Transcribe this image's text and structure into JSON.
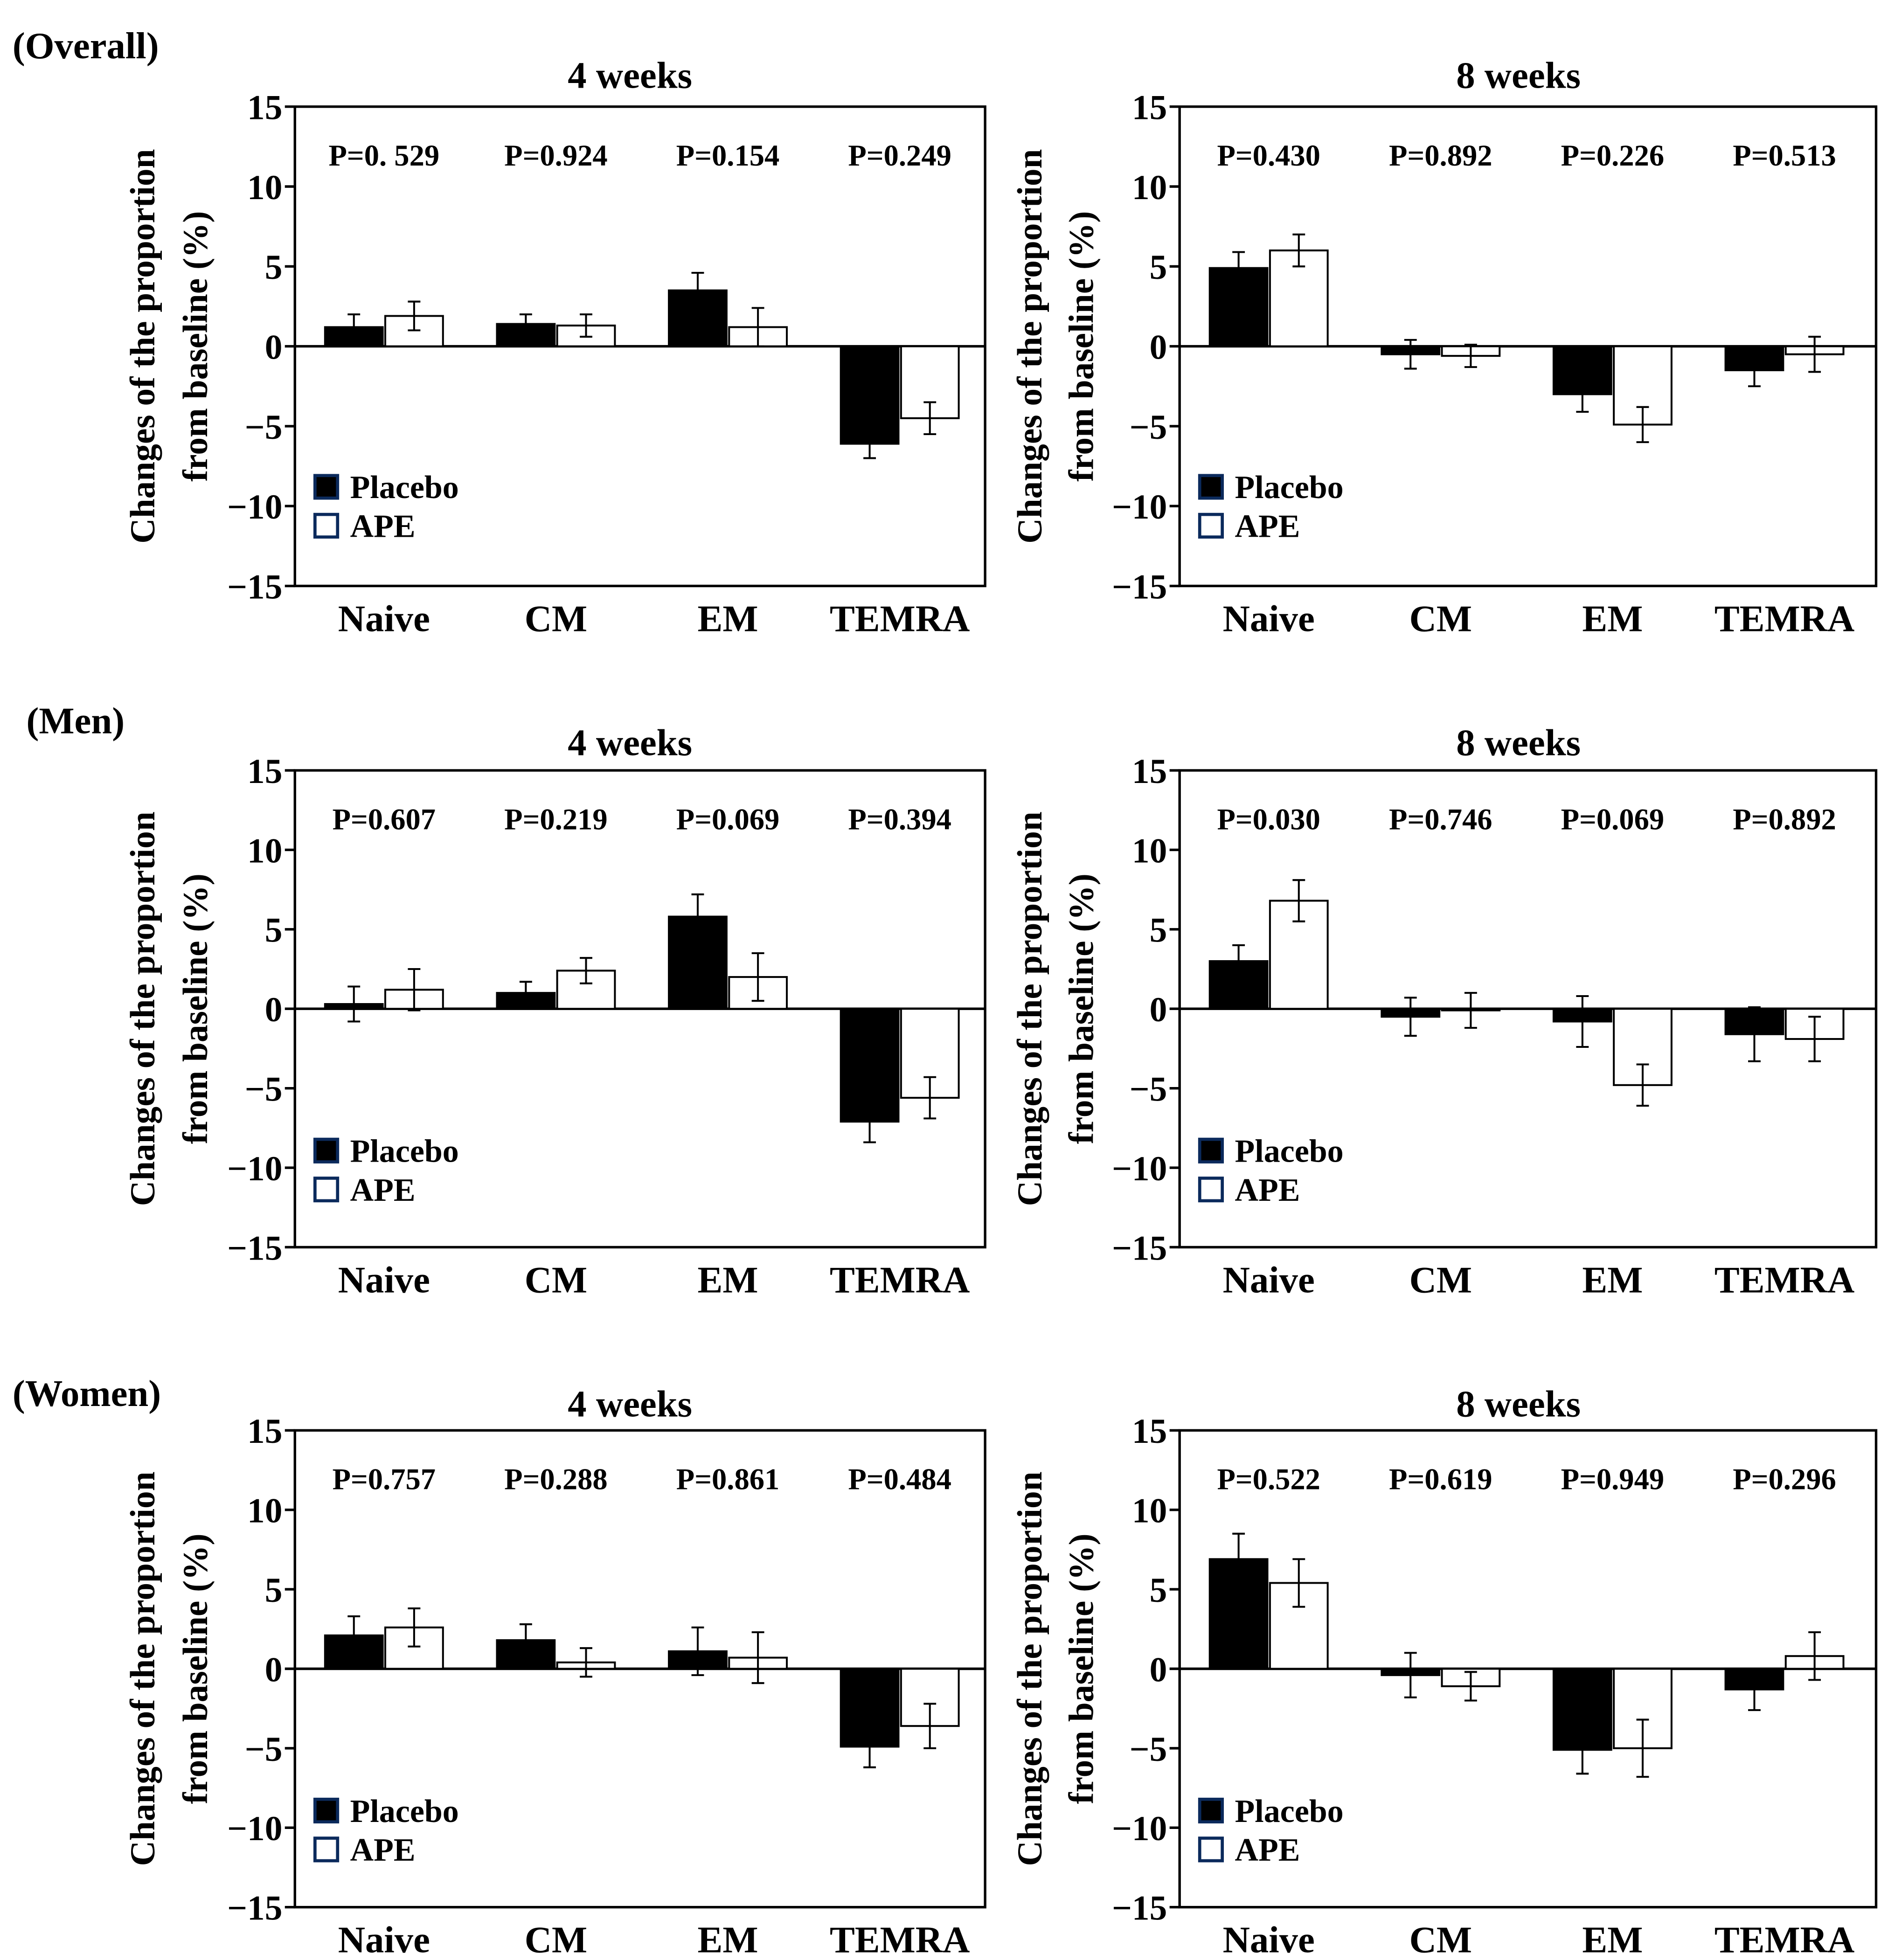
{
  "colors": {
    "placebo_fill": "#000000",
    "ape_fill": "#ffffff",
    "legend_border": "#0b2a5c",
    "ink": "#000000"
  },
  "legend": {
    "placebo": "Placebo",
    "ape": "APE"
  },
  "ylabel_line1": "Changes of the proportion",
  "ylabel_line2": "from baseline (%)",
  "chart_data": [
    {
      "type": "bar",
      "group": "(Overall)",
      "title": "4 weeks",
      "categories": [
        "Naive",
        "CM",
        "EM",
        "TEMRA"
      ],
      "ylim": [
        -15,
        15
      ],
      "yticks": [
        "15",
        "10",
        "5",
        "0",
        "−5",
        "−10",
        "−15"
      ],
      "pvalues": [
        "P=0. 529",
        "P=0.924",
        "P=0.154",
        "P=0.249"
      ],
      "series": [
        {
          "name": "Placebo",
          "values": [
            1.2,
            1.4,
            3.5,
            -6.1
          ],
          "errors": [
            0.8,
            0.6,
            1.1,
            0.9
          ]
        },
        {
          "name": "APE",
          "values": [
            1.9,
            1.3,
            1.2,
            -4.5
          ],
          "errors": [
            0.9,
            0.7,
            1.2,
            1.0
          ]
        }
      ]
    },
    {
      "type": "bar",
      "group": "",
      "title": "8 weeks",
      "categories": [
        "Naive",
        "CM",
        "EM",
        "TEMRA"
      ],
      "ylim": [
        -15,
        15
      ],
      "yticks": [
        "15",
        "10",
        "5",
        "0",
        "−5",
        "−10",
        "−15"
      ],
      "pvalues": [
        "P=0.430",
        "P=0.892",
        "P=0.226",
        "P=0.513"
      ],
      "series": [
        {
          "name": "Placebo",
          "values": [
            4.9,
            -0.5,
            -3.0,
            -1.5
          ],
          "errors": [
            1.0,
            0.9,
            1.1,
            1.0
          ]
        },
        {
          "name": "APE",
          "values": [
            6.0,
            -0.6,
            -4.9,
            -0.5
          ],
          "errors": [
            1.0,
            0.7,
            1.1,
            1.1
          ]
        }
      ]
    },
    {
      "type": "bar",
      "group": "(Men)",
      "title": "4 weeks",
      "categories": [
        "Naive",
        "CM",
        "EM",
        "TEMRA"
      ],
      "ylim": [
        -15,
        15
      ],
      "yticks": [
        "15",
        "10",
        "5",
        "0",
        "−5",
        "−10",
        "−15"
      ],
      "pvalues": [
        "P=0.607",
        "P=0.219",
        "P=0.069",
        "P=0.394"
      ],
      "series": [
        {
          "name": "Placebo",
          "values": [
            0.3,
            1.0,
            5.8,
            -7.1
          ],
          "errors": [
            1.1,
            0.7,
            1.4,
            1.3
          ]
        },
        {
          "name": "APE",
          "values": [
            1.2,
            2.4,
            2.0,
            -5.6
          ],
          "errors": [
            1.3,
            0.8,
            1.5,
            1.3
          ]
        }
      ]
    },
    {
      "type": "bar",
      "group": "",
      "title": "8 weeks",
      "categories": [
        "Naive",
        "CM",
        "EM",
        "TEMRA"
      ],
      "ylim": [
        -15,
        15
      ],
      "yticks": [
        "15",
        "10",
        "5",
        "0",
        "−5",
        "−10",
        "−15"
      ],
      "pvalues": [
        "P=0.030",
        "P=0.746",
        "P=0.069",
        "P=0.892"
      ],
      "series": [
        {
          "name": "Placebo",
          "values": [
            3.0,
            -0.5,
            -0.8,
            -1.6
          ],
          "errors": [
            1.0,
            1.2,
            1.6,
            1.7
          ]
        },
        {
          "name": "APE",
          "values": [
            6.8,
            -0.1,
            -4.8,
            -1.9
          ],
          "errors": [
            1.3,
            1.1,
            1.3,
            1.4
          ]
        }
      ]
    },
    {
      "type": "bar",
      "group": "(Women)",
      "title": "4 weeks",
      "categories": [
        "Naive",
        "CM",
        "EM",
        "TEMRA"
      ],
      "ylim": [
        -15,
        15
      ],
      "yticks": [
        "15",
        "10",
        "5",
        "0",
        "−5",
        "−10",
        "−15"
      ],
      "pvalues": [
        "P=0.757",
        "P=0.288",
        "P=0.861",
        "P=0.484"
      ],
      "series": [
        {
          "name": "Placebo",
          "values": [
            2.1,
            1.8,
            1.1,
            -4.9
          ],
          "errors": [
            1.2,
            1.0,
            1.5,
            1.3
          ]
        },
        {
          "name": "APE",
          "values": [
            2.6,
            0.4,
            0.7,
            -3.6
          ],
          "errors": [
            1.2,
            0.9,
            1.6,
            1.4
          ]
        }
      ]
    },
    {
      "type": "bar",
      "group": "",
      "title": "8 weeks",
      "categories": [
        "Naive",
        "CM",
        "EM",
        "TEMRA"
      ],
      "ylim": [
        -15,
        15
      ],
      "yticks": [
        "15",
        "10",
        "5",
        "0",
        "−5",
        "−10",
        "−15"
      ],
      "pvalues": [
        "P=0.522",
        "P=0.619",
        "P=0.949",
        "P=0.296"
      ],
      "series": [
        {
          "name": "Placebo",
          "values": [
            6.9,
            -0.4,
            -5.1,
            -1.3
          ],
          "errors": [
            1.6,
            1.4,
            1.5,
            1.3
          ]
        },
        {
          "name": "APE",
          "values": [
            5.4,
            -1.1,
            -5.0,
            0.8
          ],
          "errors": [
            1.5,
            0.9,
            1.8,
            1.5
          ]
        }
      ]
    }
  ]
}
